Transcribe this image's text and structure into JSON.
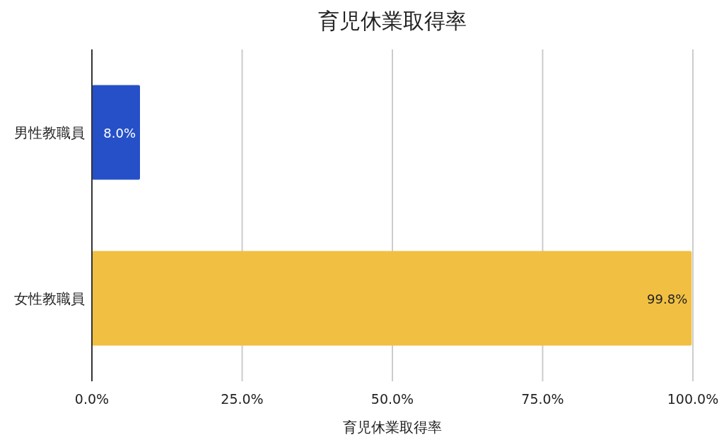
{
  "chart_data": {
    "type": "bar",
    "orientation": "horizontal",
    "title": "育児休業取得率",
    "xlabel": "育児休業取得率",
    "categories": [
      "男性教職員",
      "女性教職員"
    ],
    "values": [
      8.0,
      99.8
    ],
    "colors": [
      "#2650c8",
      "#f1bf42"
    ],
    "value_labels": [
      "8.0%",
      "99.8%"
    ],
    "xlim": [
      0,
      100
    ],
    "xticks": [
      {
        "value": 0,
        "label": "0.0%"
      },
      {
        "value": 25,
        "label": "25.0%"
      },
      {
        "value": 50,
        "label": "50.0%"
      },
      {
        "value": 75,
        "label": "75.0%"
      },
      {
        "value": 100,
        "label": "100.0%"
      }
    ],
    "grid": "x"
  }
}
